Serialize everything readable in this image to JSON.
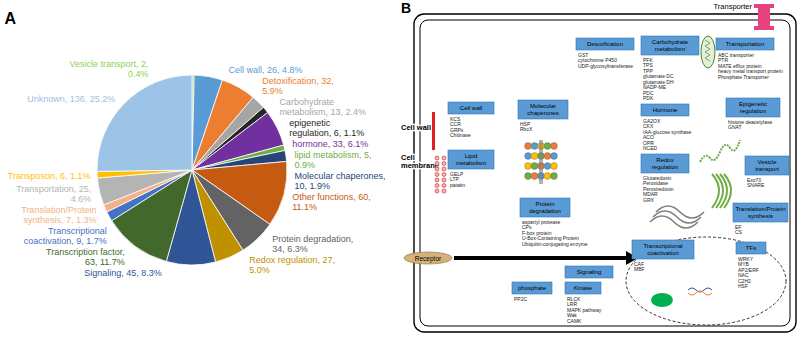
{
  "chart_data": {
    "type": "pie",
    "title": "A",
    "categories": [
      "Vesicle transport, 2, 0.4%",
      "Cell wall, 26, 4.8%",
      "Detoxification, 32, 5.9%",
      "Carbohydrate metabolism, 13, 2.4%",
      "epigenetic regulation, 6, 1.1%",
      "hormone, 33, 6.1%",
      "lipid metabolism, 5, 0.9%",
      "Molecular chaperones, 10, 1.9%",
      "Other functions, 60, 11.1%",
      "Protein degradation, 34, 6.3%",
      "Redox regulation, 27, 5.0%",
      "Signaling, 45, 8.3%",
      "Transcription factor, 63, 11.7%",
      "Transcriptional coactivation, 9, 1.7%",
      "Translation/Protein synthesis, 7, 1.3%",
      "Transportation, 25, 4.6%",
      "Transposon, 6, 1.1%",
      "Unknown, 136, 25.2%"
    ],
    "values": [
      2,
      26,
      32,
      13,
      6,
      33,
      5,
      10,
      60,
      34,
      27,
      45,
      63,
      9,
      7,
      25,
      6,
      136
    ],
    "colors": [
      "#92d050",
      "#5b9bd5",
      "#ed7d31",
      "#a5a5a5",
      "#262626",
      "#7030a0",
      "#70ad47",
      "#264478",
      "#c55a11",
      "#636363",
      "#bf9000",
      "#2f5597",
      "#43682b",
      "#4472c4",
      "#f4b183",
      "#b4b4b4",
      "#ffc000",
      "#9dc3e6"
    ]
  },
  "diagram": {
    "title": "B",
    "labels": {
      "transporter": "Transporter",
      "cell_wall": "Cell wall",
      "cell_membrane": "Cell membrane",
      "receptor": "Receptor"
    },
    "boxes": [
      {
        "title": "Detoxification",
        "items": [
          "GST",
          "cytochrome P450",
          "UDP-glycosyltransferase"
        ]
      },
      {
        "title": "Carbohydrate metabolism",
        "items": [
          "PFK",
          "TPS",
          "TPP",
          "glutamate DC",
          "glutamate DH",
          "NADP-ME",
          "PDC",
          "PDK"
        ]
      },
      {
        "title": "Transportation",
        "items": [
          "ABC transporter",
          "PTR",
          "MATE efflux protein",
          "heavy metal transport protein",
          "Phosphate Transporter"
        ]
      },
      {
        "title": "Cell wall",
        "items": [
          "KCS",
          "CCR",
          "GRPs",
          "Chitinase"
        ]
      },
      {
        "title": "Molecular chaperones",
        "items": [
          "HSP",
          "RbcX"
        ]
      },
      {
        "title": "Hormone",
        "items": [
          "GA2OX",
          "CKX",
          "IAA-glucose synthase",
          "ACO",
          "OPR",
          "NCED"
        ]
      },
      {
        "title": "Epigenetic regulation",
        "items": [
          "histone deacetylase",
          "GNAT"
        ]
      },
      {
        "title": "Lipid metabolism",
        "items": [
          "GELP",
          "LTP",
          "patatin"
        ]
      },
      {
        "title": "Redox regulation",
        "items": [
          "Glutaredoxin",
          "Peroxidase",
          "Peroxiredoxin",
          "MDAR",
          "GRX"
        ]
      },
      {
        "title": "Vesicle transport",
        "items": [
          "Exo70",
          "SNARE"
        ]
      },
      {
        "title": "Protein degradation",
        "items": [
          "aspartyl protease",
          "CPs",
          "F-box protein",
          "U-Box-Containing Protein",
          "Ubiquitin-conjugating enzyme"
        ]
      },
      {
        "title": "Translation/Protein synthesis",
        "items": [
          "EF",
          "CS"
        ]
      },
      {
        "title": "Transcriptional coactivation",
        "items": [
          "CAF",
          "MBF"
        ]
      },
      {
        "title": "TFs",
        "items": [
          "WRKY",
          "MYB",
          "AP2/ERF",
          "NAC",
          "C2H2",
          "HSF"
        ]
      }
    ],
    "signaling": {
      "title": "Signaling",
      "groups": [
        {
          "title": "phosphate",
          "items": [
            "PP2C"
          ]
        },
        {
          "title": "Kinase",
          "items": [
            "RLCK",
            "LRR",
            "MAPK pathway",
            "Wak",
            "CAMK"
          ]
        }
      ]
    }
  }
}
